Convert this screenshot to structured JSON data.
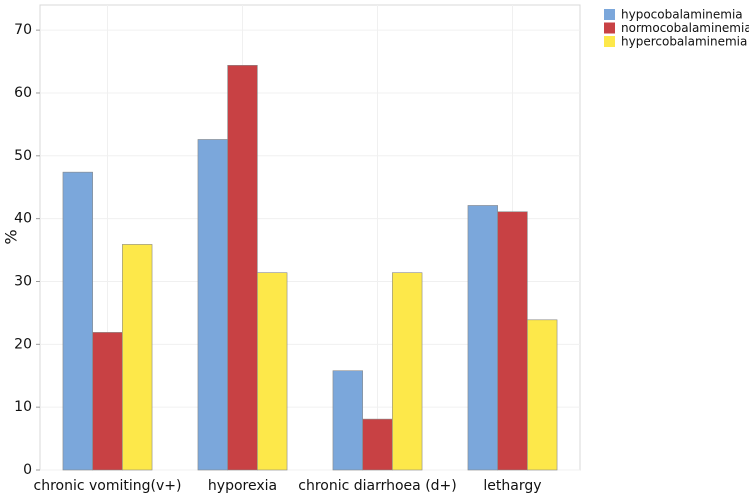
{
  "chart_data": {
    "type": "bar",
    "ylabel": "%",
    "categories": [
      "chronic vomiting(v+)",
      "hyporexia",
      "chronic diarrhoea (d+)",
      "lethargy"
    ],
    "series": [
      {
        "name": "hypocobalaminemia",
        "color": "#7ba7db",
        "values": [
          47.4,
          52.6,
          15.8,
          42.1
        ]
      },
      {
        "name": "normocobalaminemia",
        "color": "#c84144",
        "values": [
          21.9,
          64.4,
          8.1,
          41.1
        ]
      },
      {
        "name": "hypercobalaminemia",
        "color": "#fde84a",
        "values": [
          35.9,
          31.4,
          31.4,
          23.9
        ]
      }
    ],
    "ylim": [
      0,
      74
    ],
    "yticks": [
      0,
      10,
      20,
      30,
      40,
      50,
      60,
      70
    ],
    "grid": true,
    "legend": "right"
  }
}
